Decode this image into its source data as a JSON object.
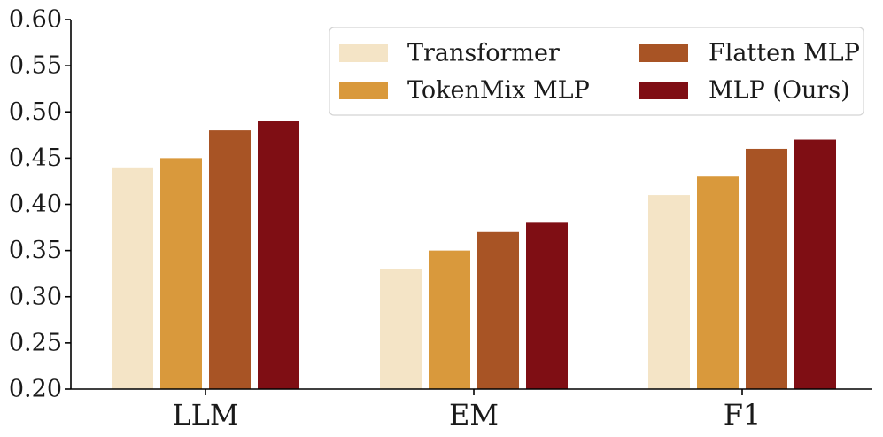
{
  "chart_data": {
    "type": "bar",
    "title": "",
    "xlabel": "",
    "ylabel": "",
    "categories": [
      "LLM",
      "EM",
      "F1"
    ],
    "series": [
      {
        "name": "Transformer",
        "color": "#f4e4c6",
        "values": [
          0.44,
          0.33,
          0.41
        ]
      },
      {
        "name": "TokenMix MLP",
        "color": "#d9993c",
        "values": [
          0.45,
          0.35,
          0.43
        ]
      },
      {
        "name": "Flatten MLP",
        "color": "#a85425",
        "values": [
          0.48,
          0.37,
          0.46
        ]
      },
      {
        "name": "MLP (Ours)",
        "color": "#7f0e14",
        "values": [
          0.49,
          0.38,
          0.47
        ]
      }
    ],
    "ylim": [
      0.2,
      0.6
    ],
    "yticks": [
      "0.20",
      "0.25",
      "0.30",
      "0.35",
      "0.40",
      "0.45",
      "0.50",
      "0.55",
      "0.60"
    ],
    "grid": false,
    "legend_position": "top-right"
  }
}
